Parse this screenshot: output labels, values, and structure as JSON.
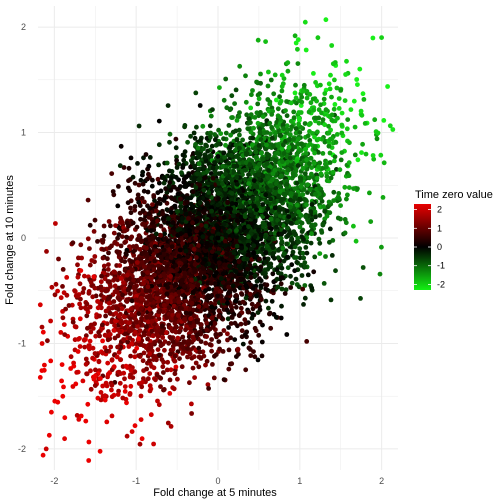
{
  "chart_data": {
    "type": "scatter",
    "xlabel": "Fold change at 5 minutes",
    "ylabel": "Fold change at 10 minutes",
    "xlim": [
      -2.2,
      2.2
    ],
    "ylim": [
      -2.2,
      2.2
    ],
    "x_ticks": [
      -2,
      -1,
      0,
      1,
      2
    ],
    "y_ticks": [
      -2,
      -1,
      0,
      1,
      2
    ],
    "x_tick_labels": [
      "-2",
      "-1",
      "0",
      "1",
      "2"
    ],
    "y_tick_labels": [
      "-2",
      "-1",
      "0",
      "1",
      "2"
    ],
    "grid": true,
    "legend": {
      "title": "Time zero value",
      "position": "right",
      "breaks": [
        2,
        1,
        0,
        -1,
        -2
      ],
      "labels": [
        "2",
        "1",
        "0",
        "-1",
        "-2"
      ],
      "limits": [
        -2.3,
        2.3
      ],
      "colors": {
        "high": "#ff0000",
        "mid": "#000000",
        "low": "#00ff00"
      }
    },
    "point_color_rule": "color = Time zero value; high (positive) red, 0 black, low (negative) green",
    "correlation_approx": 0.45,
    "n_points_approx": 6000,
    "points_sample": [
      {
        "x": -1.5,
        "y": -1.4,
        "c": 1.4
      },
      {
        "x": -1.0,
        "y": -0.8,
        "c": 1.0
      },
      {
        "x": -0.5,
        "y": -0.3,
        "c": 0.6
      },
      {
        "x": 0.0,
        "y": 0.0,
        "c": 0.0
      },
      {
        "x": 0.5,
        "y": 0.6,
        "c": -0.6
      },
      {
        "x": 1.0,
        "y": 1.0,
        "c": -1.0
      },
      {
        "x": 1.5,
        "y": 1.4,
        "c": -1.4
      },
      {
        "x": 2.0,
        "y": 1.9,
        "c": -2.0
      },
      {
        "x": -2.1,
        "y": -2.0,
        "c": 2.0
      }
    ]
  }
}
